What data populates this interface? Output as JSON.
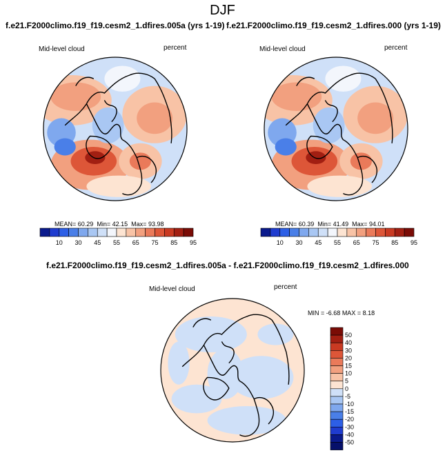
{
  "title": "DJF",
  "panels": [
    {
      "title": "f.e21.F2000climo.f19_f19.cesm2_1.dfires.005a (yrs 1-19)",
      "variable": "Mid-level cloud",
      "units": "percent",
      "stats": {
        "mean": "60.29",
        "min": "42.15",
        "max": "93.98"
      }
    },
    {
      "title": "f.e21.F2000climo.f19_f19.cesm2_1.dfires.000 (yrs 1-19)",
      "variable": "Mid-level cloud",
      "units": "percent",
      "stats": {
        "mean": "60.39",
        "min": "41.49",
        "max": "94.01"
      }
    },
    {
      "title": "f.e21.F2000climo.f19_f19.cesm2_1.dfires.005a - f.e21.F2000climo.f19_f19.cesm2_1.dfires.000",
      "variable": "Mid-level cloud",
      "units": "percent",
      "stats": {
        "min": "-6.68",
        "max": "8.18"
      }
    }
  ],
  "labels": {
    "mean": "MEAN=",
    "min": "Min=",
    "max": "Max=",
    "MIN": "MIN =",
    "MAX": "MAX ="
  },
  "colorbar_abs": {
    "ticks": [
      "10",
      "30",
      "45",
      "55",
      "65",
      "75",
      "85",
      "95"
    ],
    "colors": [
      "#0a1a8c",
      "#1f3ccf",
      "#2d5fe6",
      "#4a7fe8",
      "#7fa8ee",
      "#a9c7f3",
      "#cfe0f8",
      "#f3f6fc",
      "#fde4d2",
      "#f8c3a6",
      "#f2a07f",
      "#ea7a5a",
      "#dd5638",
      "#c93a22",
      "#a21f12",
      "#7a0c06"
    ]
  },
  "colorbar_diff": {
    "ticks": [
      "50",
      "40",
      "30",
      "20",
      "15",
      "10",
      "5",
      "0",
      "-5",
      "-10",
      "-15",
      "-20",
      "-30",
      "-40",
      "-50"
    ],
    "colors": [
      "#7a0c06",
      "#a21f12",
      "#c93a22",
      "#dd5638",
      "#ea7a5a",
      "#f2a07f",
      "#f8c3a6",
      "#fde4d2",
      "#cfe0f8",
      "#a9c7f3",
      "#7fa8ee",
      "#4a7fe8",
      "#2d5fe6",
      "#1f3ccf",
      "#0a1a8c",
      "#06106a"
    ]
  }
}
